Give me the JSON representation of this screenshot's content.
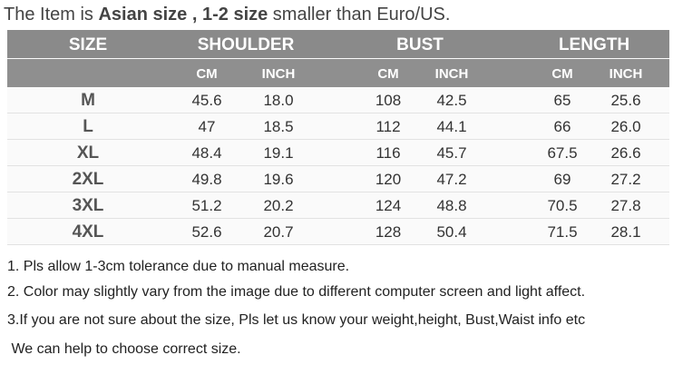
{
  "header": {
    "title": [
      "The Item is ",
      "Asian size , 1-2 size",
      " smaller than Euro/US."
    ]
  },
  "table": {
    "groups": [
      "SIZE",
      "SHOULDER",
      "BUST",
      "LENGTH"
    ],
    "units": [
      "CM",
      "INCH",
      "CM",
      "INCH",
      "CM",
      "INCH"
    ],
    "rows": [
      [
        "M",
        "45.6",
        "18.0",
        "108",
        "42.5",
        "65",
        "25.6"
      ],
      [
        "L",
        "47",
        "18.5",
        "112",
        "44.1",
        "66",
        "26.0"
      ],
      [
        "XL",
        "48.4",
        "19.1",
        "116",
        "45.7",
        "67.5",
        "26.6"
      ],
      [
        "2XL",
        "49.8",
        "19.6",
        "120",
        "47.2",
        "69",
        "27.2"
      ],
      [
        "3XL",
        "51.2",
        "20.2",
        "124",
        "48.8",
        "70.5",
        "27.8"
      ],
      [
        "4XL",
        "52.6",
        "20.7",
        "128",
        "50.4",
        "71.5",
        "28.1"
      ]
    ]
  },
  "notes": [
    "1. Pls allow 1-3cm tolerance due to manual measure.",
    "2. Color may slightly vary from the image due to different computer screen and light affect.",
    "3.If you are not sure about the size, Pls let us know your weight,height, Bust,Waist info etc",
    " We can help to choose correct size."
  ]
}
